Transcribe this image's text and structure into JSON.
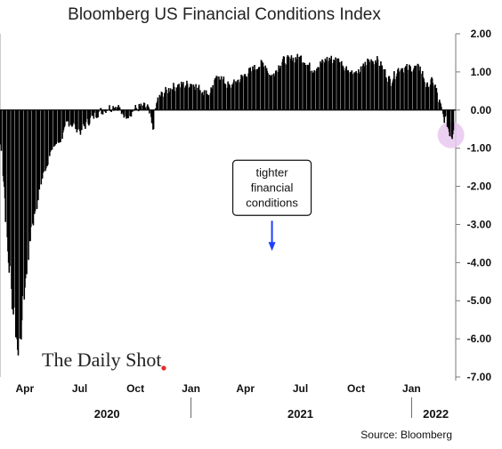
{
  "chart_data": {
    "type": "bar",
    "title": "Bloomberg US Financial Conditions Index",
    "xlabel": "",
    "ylabel": "",
    "ylim": [
      -7.0,
      2.0
    ],
    "yticks": [
      "2.00",
      "1.00",
      "0.00",
      "-1.00",
      "-2.00",
      "-3.00",
      "-4.00",
      "-5.00",
      "-6.00",
      "-7.00"
    ],
    "ytick_values": [
      2,
      1,
      0,
      -1,
      -2,
      -3,
      -4,
      -5,
      -6,
      -7
    ],
    "xlim": [
      "2020-02-20",
      "2022-03-15"
    ],
    "xticks": [
      {
        "label": "Apr",
        "date": "2020-04-01"
      },
      {
        "label": "Jul",
        "date": "2020-07-01"
      },
      {
        "label": "Oct",
        "date": "2020-10-01"
      },
      {
        "label": "Jan",
        "date": "2021-01-01"
      },
      {
        "label": "Apr",
        "date": "2021-04-01"
      },
      {
        "label": "Jul",
        "date": "2021-07-01"
      },
      {
        "label": "Oct",
        "date": "2021-10-01"
      },
      {
        "label": "Jan",
        "date": "2022-01-01"
      }
    ],
    "years": [
      {
        "label": "2020",
        "date": "2020-08-15"
      },
      {
        "label": "2021",
        "date": "2021-07-01"
      },
      {
        "label": "2022",
        "date": "2022-02-10"
      }
    ],
    "year_separators": [
      "2021-01-01",
      "2022-01-01"
    ],
    "bar_color": "#000000",
    "highlight": {
      "date": "2022-03-07",
      "value": -0.65,
      "color": "#e9c8ee"
    },
    "annotation": {
      "lines": [
        "tighter",
        "financial",
        "conditions"
      ],
      "date": "2021-05-15",
      "value": -2.25,
      "arrow_color": "#1f3fff"
    },
    "anchors": [
      [
        "2020-02-20",
        -0.9
      ],
      [
        "2020-02-26",
        -2.0
      ],
      [
        "2020-03-02",
        -3.6
      ],
      [
        "2020-03-09",
        -4.8
      ],
      [
        "2020-03-13",
        -5.3
      ],
      [
        "2020-03-18",
        -6.0
      ],
      [
        "2020-03-23",
        -6.3
      ],
      [
        "2020-03-27",
        -5.2
      ],
      [
        "2020-04-02",
        -4.3
      ],
      [
        "2020-04-10",
        -3.1
      ],
      [
        "2020-04-20",
        -2.3
      ],
      [
        "2020-05-01",
        -1.65
      ],
      [
        "2020-05-15",
        -1.0
      ],
      [
        "2020-06-01",
        -0.7
      ],
      [
        "2020-06-10",
        -0.3
      ],
      [
        "2020-06-20",
        -0.4
      ],
      [
        "2020-07-01",
        -0.55
      ],
      [
        "2020-07-20",
        -0.2
      ],
      [
        "2020-08-01",
        -0.05
      ],
      [
        "2020-08-15",
        0.05
      ],
      [
        "2020-09-01",
        0.1
      ],
      [
        "2020-09-10",
        -0.15
      ],
      [
        "2020-09-20",
        -0.1
      ],
      [
        "2020-10-01",
        0.05
      ],
      [
        "2020-10-20",
        0.1
      ],
      [
        "2020-10-29",
        -0.5
      ],
      [
        "2020-11-05",
        0.25
      ],
      [
        "2020-11-15",
        0.45
      ],
      [
        "2020-12-01",
        0.6
      ],
      [
        "2021-01-01",
        0.7
      ],
      [
        "2021-01-28",
        0.4
      ],
      [
        "2021-02-15",
        0.9
      ],
      [
        "2021-03-05",
        0.6
      ],
      [
        "2021-04-01",
        0.95
      ],
      [
        "2021-05-01",
        1.25
      ],
      [
        "2021-05-12",
        0.85
      ],
      [
        "2021-06-01",
        1.3
      ],
      [
        "2021-07-01",
        1.38
      ],
      [
        "2021-07-20",
        1.05
      ],
      [
        "2021-08-15",
        1.35
      ],
      [
        "2021-09-01",
        1.3
      ],
      [
        "2021-09-20",
        1.0
      ],
      [
        "2021-10-01",
        0.9
      ],
      [
        "2021-10-20",
        1.3
      ],
      [
        "2021-11-05",
        1.3
      ],
      [
        "2021-11-26",
        0.75
      ],
      [
        "2021-12-10",
        1.1
      ],
      [
        "2022-01-01",
        1.1
      ],
      [
        "2022-01-15",
        1.1
      ],
      [
        "2022-01-25",
        0.6
      ],
      [
        "2022-02-05",
        0.8
      ],
      [
        "2022-02-15",
        0.2
      ],
      [
        "2022-02-22",
        -0.2
      ],
      [
        "2022-02-28",
        -0.35
      ],
      [
        "2022-03-04",
        -0.6
      ],
      [
        "2022-03-08",
        -0.7
      ],
      [
        "2022-03-10",
        -0.45
      ]
    ]
  },
  "source_text": "Source: Bloomberg",
  "watermark": "The Daily Shot"
}
